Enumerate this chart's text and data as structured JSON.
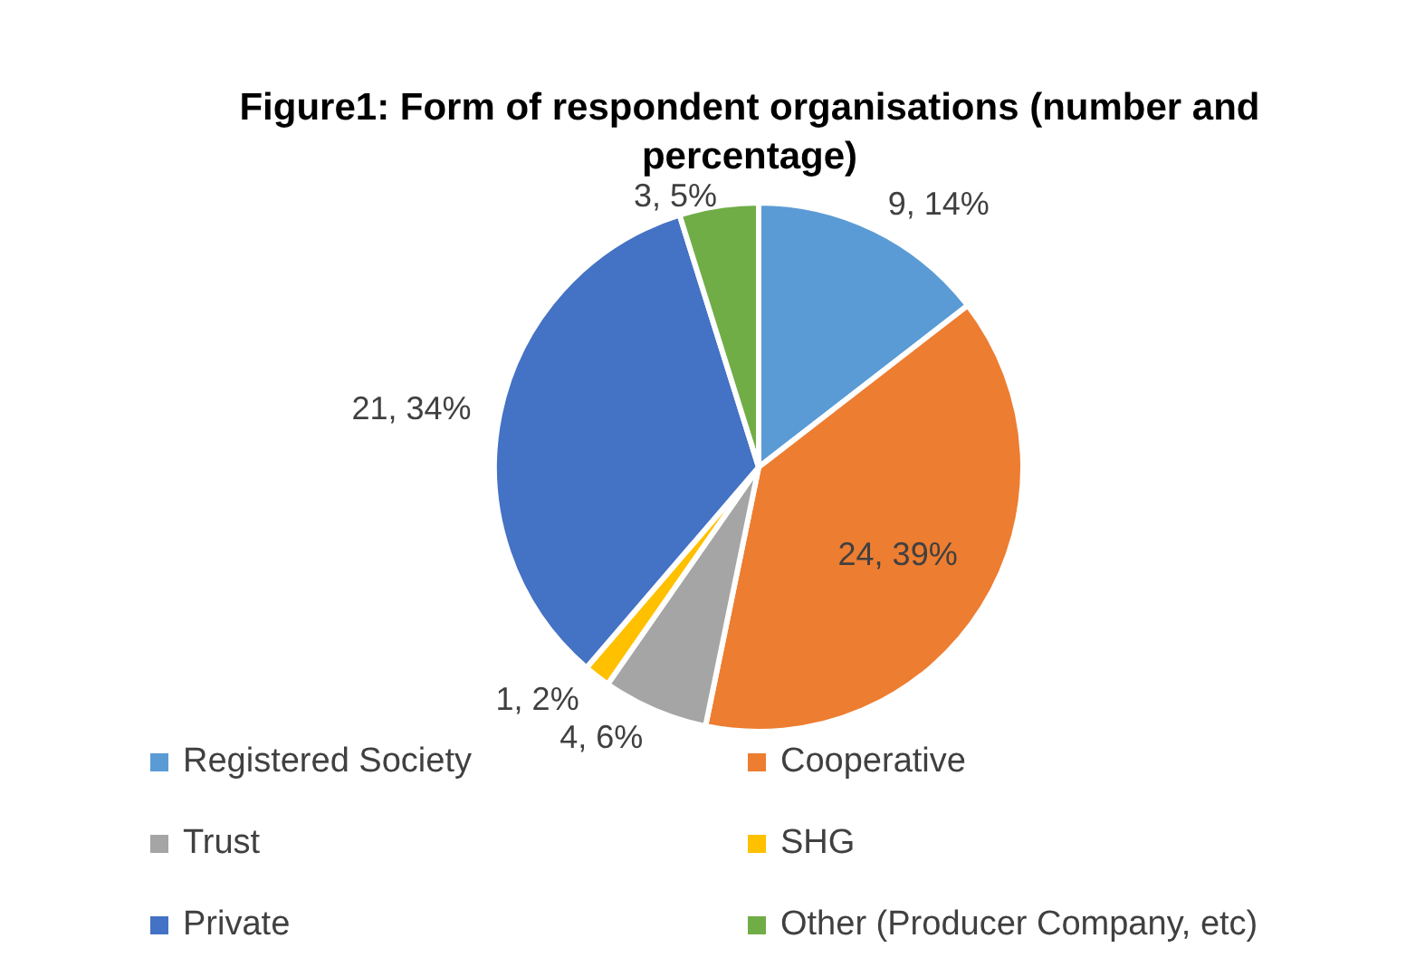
{
  "chart_data": {
    "type": "pie",
    "title": "Figure1: Form of respondent organisations (number and percentage)",
    "categories": [
      "Registered Society",
      "Cooperative",
      "Trust",
      "SHG",
      "Private",
      "Other (Producer Company, etc)"
    ],
    "values": [
      9,
      24,
      4,
      1,
      21,
      3
    ],
    "value_labels": [
      "9, 14%",
      "24, 39%",
      "4, 6%",
      "1, 2%",
      "21, 34%",
      "3, 5%"
    ],
    "colors": [
      "#5b9bd5",
      "#ed7d31",
      "#a5a5a5",
      "#ffc000",
      "#4472c4",
      "#70ad47"
    ],
    "legend": "bottom"
  }
}
